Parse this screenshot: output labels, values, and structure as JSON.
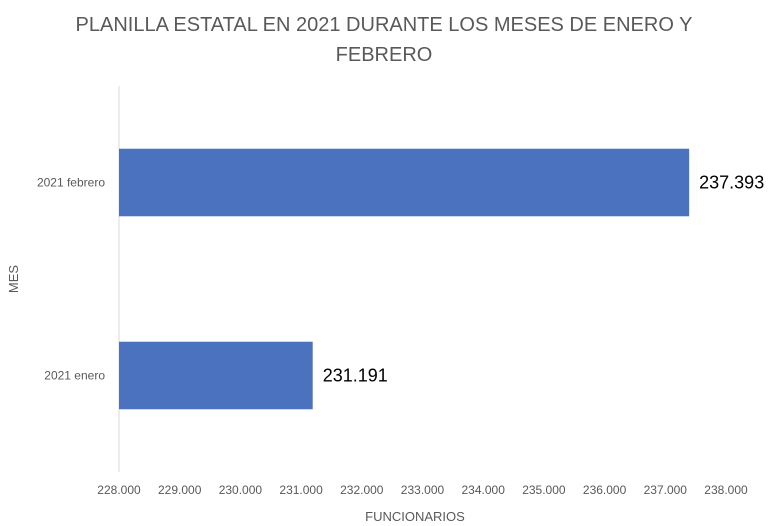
{
  "chart_data": {
    "type": "bar",
    "orientation": "horizontal",
    "title": "PLANILLA ESTATAL EN 2021 DURANTE LOS MESES DE ENERO Y FEBRERO",
    "xlabel": "FUNCIONARIOS",
    "ylabel": "MES",
    "categories": [
      "2021 enero",
      "2021 febrero"
    ],
    "values": [
      231191,
      237393
    ],
    "data_labels": [
      "231.191",
      "237.393"
    ],
    "xlim": [
      228000,
      238000
    ],
    "x_ticks": [
      228000,
      229000,
      230000,
      231000,
      232000,
      233000,
      234000,
      235000,
      236000,
      237000,
      238000
    ],
    "x_tick_labels": [
      "228.000",
      "229.000",
      "230.000",
      "231.000",
      "232.000",
      "233.000",
      "234.000",
      "235.000",
      "236.000",
      "237.000",
      "238.000"
    ],
    "bar_color": "#4a72be",
    "axis_color": "#d9d9d9",
    "text_color": "#595959",
    "grid": false,
    "legend": "none"
  }
}
